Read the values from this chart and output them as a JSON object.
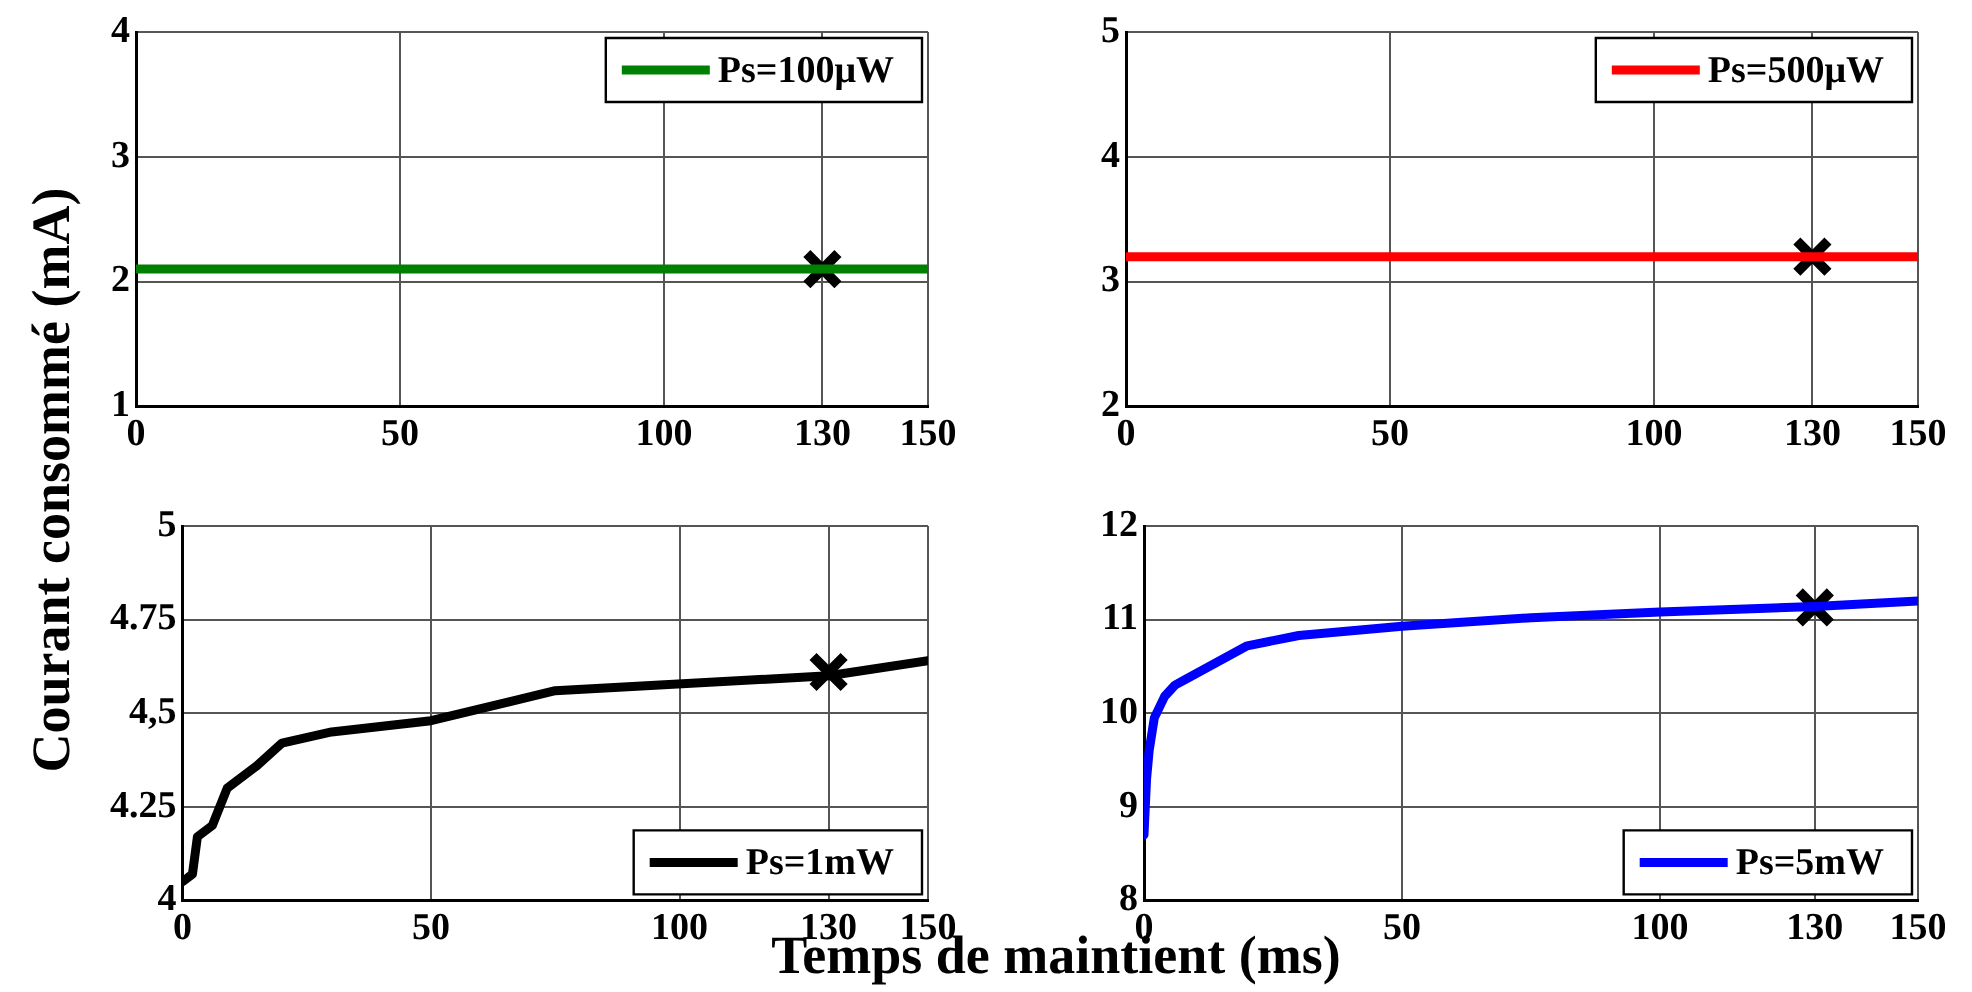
{
  "chart_data": [
    {
      "type": "line",
      "ylabel": "Courant consommé (mA)",
      "xlim": [
        0,
        150
      ],
      "xticks": [
        0,
        50,
        100,
        130,
        150
      ],
      "ylim": [
        1,
        4
      ],
      "yticks": [
        1,
        2,
        3,
        4
      ],
      "grid": true,
      "legend": "top right",
      "series": [
        {
          "name": "Ps=100μW",
          "color": "#008000",
          "x": [
            0,
            150
          ],
          "values": [
            2.1,
            2.1
          ],
          "marker": "none"
        },
        {
          "type": "scatter",
          "color": "#000000",
          "x": [
            130
          ],
          "values": [
            2.1
          ],
          "marker": "cross"
        }
      ]
    },
    {
      "type": "line",
      "xlim": [
        0,
        150
      ],
      "xticks": [
        0,
        50,
        100,
        130,
        150
      ],
      "ylim": [
        2,
        5
      ],
      "yticks": [
        2,
        3,
        4,
        5
      ],
      "grid": true,
      "legend": "top right",
      "series": [
        {
          "name": "Ps=500μW",
          "color": "#ff0000",
          "x": [
            0,
            150
          ],
          "values": [
            3.2,
            3.2
          ],
          "marker": "none"
        },
        {
          "type": "scatter",
          "color": "#000000",
          "x": [
            130
          ],
          "values": [
            3.2
          ],
          "marker": "cross"
        }
      ]
    },
    {
      "type": "line",
      "xlabel": "Temps de maintient (ms)",
      "xlim": [
        0,
        150
      ],
      "xticks": [
        0,
        50,
        100,
        130,
        150
      ],
      "ylim": [
        4,
        5
      ],
      "yticks": [
        4,
        {
          "value": 4.25,
          "label": "4.25"
        },
        {
          "value": 4.5,
          "label": "4,5"
        },
        {
          "value": 4.75,
          "label": "4.75"
        },
        5
      ],
      "grid": true,
      "legend": "bottom right",
      "series": [
        {
          "name": "Ps=1mW",
          "color": "#000000",
          "x": [
            0,
            2,
            3,
            6,
            9,
            15,
            20,
            30,
            50,
            75,
            130,
            150
          ],
          "values": [
            4.05,
            4.07,
            4.17,
            4.2,
            4.3,
            4.36,
            4.42,
            4.45,
            4.48,
            4.56,
            4.6,
            4.64
          ],
          "marker": "none"
        },
        {
          "type": "scatter",
          "color": "#000000",
          "x": [
            130
          ],
          "values": [
            4.61
          ],
          "marker": "cross"
        }
      ]
    },
    {
      "type": "line",
      "xlim": [
        0,
        150
      ],
      "xticks": [
        0,
        50,
        100,
        130,
        150
      ],
      "ylim": [
        8,
        12
      ],
      "yticks": [
        8,
        9,
        10,
        11,
        12
      ],
      "grid": true,
      "legend": "bottom right",
      "series": [
        {
          "name": "Ps=5mW",
          "color": "#0000ff",
          "x": [
            0,
            0.5,
            1,
            2,
            4,
            6,
            8,
            20,
            30,
            50,
            75,
            100,
            130,
            150
          ],
          "values": [
            8.7,
            9.3,
            9.6,
            9.95,
            10.18,
            10.3,
            10.36,
            10.72,
            10.83,
            10.93,
            11.02,
            11.08,
            11.14,
            11.2
          ],
          "marker": "none"
        },
        {
          "type": "scatter",
          "color": "#000000",
          "x": [
            130
          ],
          "values": [
            11.13
          ],
          "marker": "cross"
        }
      ]
    }
  ]
}
